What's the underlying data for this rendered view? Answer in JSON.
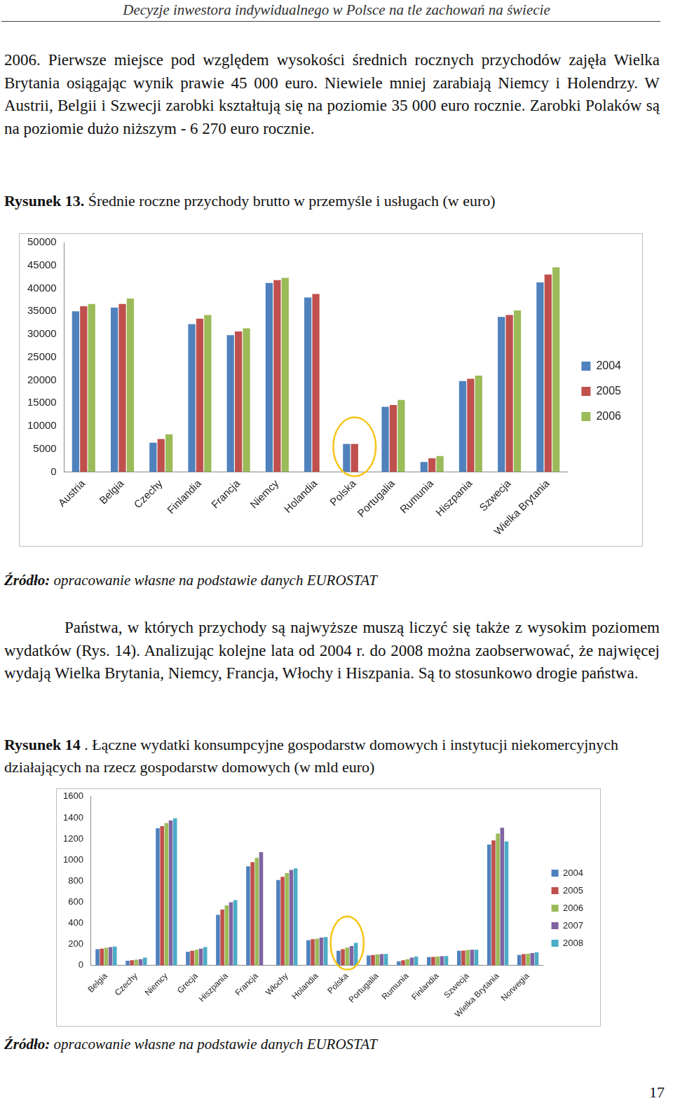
{
  "running_head": "Decyzje inwestora indywidualnego w Polsce na tle zachowań na świecie",
  "paragraphs": [
    "2006. Pierwsze miejsce pod względem wysokości średnich rocznych przychodów zajęła Wielka Brytania osiągając wynik prawie 45 000 euro. Niewiele mniej zarabiają Niemcy i Holendrzy. W Austrii, Belgii i Szwecji zarobki kształtują się na poziomie 35 000 euro rocznie. Zarobki Polaków są na poziomie dużo niższym - 6 270 euro rocznie.",
    "Państwa, w których przychody są najwyższe muszą liczyć się także z wysokim poziomem wydatków (Rys. 14). Analizując kolejne lata od 2004 r. do 2008 można zaobserwować, że najwięcej wydają Wielka Brytania, Niemcy, Francja, Włochy i Hiszpania. Są to stosunkowo drogie państwa."
  ],
  "figures": [
    {
      "label": "Rysunek 13.",
      "caption": "Średnie roczne przychody brutto w przemyśle i usługach (w euro)",
      "source_label": "Źródło:",
      "source": "opracowanie własne na podstawie danych EUROSTAT"
    },
    {
      "label": "Rysunek 14",
      "caption": ". Łączne wydatki konsumpcyjne gospodarstw domowych i instytucji niekomercyjnych działających na rzecz gospodarstw domowych (w mld euro)",
      "source_label": "Źródło:",
      "source": "opracowanie własne na podstawie danych EUROSTAT"
    }
  ],
  "chart_data": [
    {
      "type": "bar",
      "categories": [
        "Austria",
        "Belgia",
        "Czechy",
        "Finlandia",
        "Francja",
        "Niemcy",
        "Holandia",
        "Polska",
        "Portugalia",
        "Rumunia",
        "Hiszpania",
        "Szwecja",
        "Wielka Brytania"
      ],
      "series": [
        {
          "name": "2004",
          "color": "#4f81bd",
          "values": [
            35000,
            35800,
            6400,
            32200,
            29800,
            41200,
            38000,
            6100,
            14200,
            2200,
            19800,
            33800,
            41300
          ]
        },
        {
          "name": "2005",
          "color": "#c0504d",
          "values": [
            36100,
            36600,
            7200,
            33400,
            30600,
            41800,
            38800,
            6100,
            14600,
            3000,
            20300,
            34200,
            43000
          ]
        },
        {
          "name": "2006",
          "color": "#9bbb59",
          "values": [
            36600,
            37800,
            8200,
            34200,
            31300,
            42300,
            null,
            null,
            15700,
            3500,
            21000,
            35200,
            44600
          ]
        }
      ],
      "ylim": [
        0,
        50000
      ],
      "yticks": [
        0,
        5000,
        10000,
        15000,
        20000,
        25000,
        30000,
        35000,
        40000,
        45000,
        50000
      ],
      "grid": false,
      "legend": "right"
    },
    {
      "type": "bar",
      "categories": [
        "Belgia",
        "Czechy",
        "Niemcy",
        "Grecja",
        "Hiszpania",
        "Francja",
        "Włochy",
        "Holandia",
        "Polska",
        "Portugalia",
        "Rumunia",
        "Finlandia",
        "Szwecja",
        "Wielka Brytania",
        "Norwegia"
      ],
      "series": [
        {
          "name": "2004",
          "color": "#4f81bd",
          "values": [
            155,
            45,
            1300,
            130,
            480,
            940,
            810,
            240,
            140,
            95,
            40,
            80,
            140,
            1145,
            100
          ]
        },
        {
          "name": "2005",
          "color": "#c0504d",
          "values": [
            160,
            50,
            1320,
            140,
            530,
            980,
            840,
            250,
            155,
            100,
            50,
            82,
            142,
            1185,
            108
          ]
        },
        {
          "name": "2006",
          "color": "#9bbb59",
          "values": [
            168,
            55,
            1350,
            150,
            570,
            1020,
            875,
            255,
            170,
            105,
            60,
            85,
            148,
            1250,
            112
          ]
        },
        {
          "name": "2007",
          "color": "#8064a2",
          "values": [
            175,
            60,
            1375,
            160,
            600,
            1075,
            905,
            265,
            185,
            108,
            75,
            88,
            150,
            1305,
            118
          ]
        },
        {
          "name": "2008",
          "color": "#4bacc6",
          "values": [
            180,
            75,
            1395,
            175,
            620,
            null,
            920,
            270,
            215,
            110,
            85,
            90,
            150,
            1175,
            125
          ]
        }
      ],
      "ylim": [
        0,
        1600
      ],
      "yticks": [
        0,
        200,
        400,
        600,
        800,
        1000,
        1200,
        1400,
        1600
      ],
      "grid": false,
      "legend": "right"
    }
  ],
  "page_number": "17"
}
